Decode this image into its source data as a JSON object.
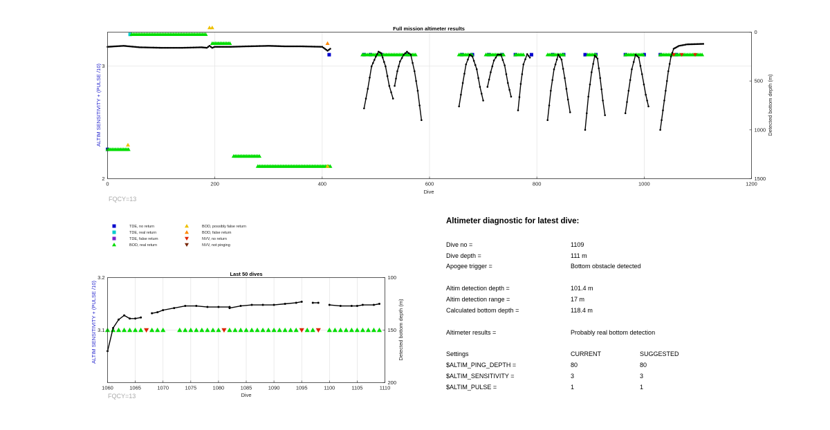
{
  "chart_data": [
    {
      "type": "scatter",
      "title": "Full mission altimeter results",
      "xlabel": "Dive",
      "ylabel": "ALTIM SENSITIVITY + (PULSE /10)",
      "y2label": "Detected bottom depth (m)",
      "xlim": [
        0,
        1200
      ],
      "ylim": [
        2,
        3.3
      ],
      "y2lim": [
        1500,
        0
      ],
      "xticks": [
        0,
        200,
        400,
        600,
        800,
        1000,
        1200
      ],
      "yticks": [
        2,
        3
      ],
      "y2ticks": [
        0,
        500,
        1000,
        1500
      ],
      "grid": true,
      "annotation": "FQCY=13",
      "series": [
        {
          "name": "TDE, no return",
          "color": "#0000cc",
          "marker": "square",
          "points": [
            [
              0,
              2.26
            ],
            [
              413,
              3.1
            ],
            [
              478,
              3.1
            ],
            [
              490,
              3.1
            ],
            [
              510,
              3.1
            ],
            [
              560,
              3.1
            ],
            [
              660,
              3.1
            ],
            [
              680,
              3.1
            ],
            [
              710,
              3.1
            ],
            [
              735,
              3.1
            ],
            [
              760,
              3.1
            ],
            [
              790,
              3.1
            ],
            [
              830,
              3.1
            ],
            [
              850,
              3.1
            ],
            [
              890,
              3.1
            ],
            [
              910,
              3.1
            ],
            [
              965,
              3.1
            ],
            [
              1000,
              3.1
            ],
            [
              1030,
              3.1
            ],
            [
              1060,
              3.1
            ]
          ]
        },
        {
          "name": "TDE, real return",
          "color": "#00cccc",
          "marker": "square",
          "points": [
            [
              42,
              3.28
            ]
          ]
        },
        {
          "name": "BOD, real return",
          "color": "#00dd00",
          "marker": "triangle-up",
          "segments": [
            [
              0,
              40,
              2.26
            ],
            [
              45,
              185,
              3.28
            ],
            [
              195,
              230,
              3.2
            ],
            [
              235,
              285,
              2.2
            ],
            [
              280,
              415,
              2.11
            ],
            [
              475,
              575,
              3.1
            ],
            [
              655,
              680,
              3.1
            ],
            [
              705,
              740,
              3.1
            ],
            [
              760,
              775,
              3.1
            ],
            [
              820,
              850,
              3.1
            ],
            [
              895,
              910,
              3.1
            ],
            [
              965,
              1000,
              3.1
            ],
            [
              1030,
              1110,
              3.1
            ]
          ]
        },
        {
          "name": "BOD, possibly false return",
          "color": "#eec000",
          "marker": "triangle-up",
          "points": [
            [
              38,
              2.3
            ],
            [
              190,
              3.34
            ],
            [
              195,
              3.34
            ],
            [
              410,
              2.11
            ]
          ]
        },
        {
          "name": "BOD, false return",
          "color": "#ff8800",
          "marker": "triangle-up",
          "points": [
            [
              410,
              3.2
            ]
          ]
        },
        {
          "name": "NVV, no return",
          "color": "#dd2200",
          "marker": "triangle-down",
          "points": [
            [
              1055,
              3.1
            ],
            [
              1070,
              3.1
            ],
            [
              1095,
              3.1
            ]
          ]
        }
      ],
      "depth": {
        "segments": [
          [
            [
              0,
              150
            ],
            [
              30,
              140
            ],
            [
              60,
              155
            ],
            [
              100,
              160
            ],
            [
              140,
              160
            ],
            [
              175,
              155
            ],
            [
              185,
              160
            ],
            [
              190,
              140
            ],
            [
              195,
              160
            ],
            [
              200,
              150
            ],
            [
              230,
              150
            ],
            [
              260,
              145
            ],
            [
              300,
              140
            ],
            [
              330,
              145
            ],
            [
              360,
              145
            ],
            [
              400,
              150
            ],
            [
              410,
              190
            ],
            [
              415,
              170
            ]
          ],
          [
            [
              478,
              780
            ],
            [
              485,
              580
            ],
            [
              492,
              350
            ],
            [
              500,
              250
            ],
            [
              505,
              200
            ],
            [
              510,
              215
            ],
            [
              518,
              350
            ],
            [
              525,
              550
            ],
            [
              532,
              680
            ]
          ],
          [
            [
              535,
              550
            ],
            [
              540,
              400
            ],
            [
              545,
              300
            ],
            [
              552,
              230
            ],
            [
              558,
              200
            ],
            [
              565,
              230
            ],
            [
              572,
              400
            ],
            [
              578,
              600
            ],
            [
              585,
              900
            ]
          ],
          [
            [
              655,
              760
            ],
            [
              662,
              520
            ],
            [
              668,
              330
            ],
            [
              675,
              230
            ],
            [
              680,
              250
            ],
            [
              688,
              380
            ],
            [
              694,
              560
            ],
            [
              700,
              700
            ]
          ],
          [
            [
              708,
              560
            ],
            [
              714,
              410
            ],
            [
              720,
              290
            ],
            [
              727,
              230
            ],
            [
              733,
              230
            ],
            [
              740,
              340
            ],
            [
              746,
              520
            ],
            [
              752,
              660
            ]
          ],
          [
            [
              765,
              800
            ],
            [
              770,
              530
            ],
            [
              775,
              330
            ],
            [
              782,
              225
            ],
            [
              787,
              260
            ]
          ],
          [
            [
              820,
              900
            ],
            [
              826,
              600
            ],
            [
              832,
              380
            ],
            [
              840,
              230
            ],
            [
              846,
              280
            ],
            [
              852,
              470
            ],
            [
              858,
              690
            ],
            [
              862,
              820
            ]
          ],
          [
            [
              890,
              1000
            ],
            [
              896,
              660
            ],
            [
              902,
              410
            ],
            [
              908,
              240
            ],
            [
              913,
              270
            ],
            [
              918,
              470
            ],
            [
              923,
              700
            ],
            [
              927,
              850
            ]
          ],
          [
            [
              965,
              830
            ],
            [
              971,
              600
            ],
            [
              977,
              380
            ],
            [
              984,
              230
            ],
            [
              990,
              260
            ],
            [
              996,
              430
            ],
            [
              1003,
              640
            ],
            [
              1008,
              760
            ]
          ],
          [
            [
              1030,
              1000
            ],
            [
              1035,
              800
            ],
            [
              1040,
              600
            ],
            [
              1045,
              400
            ],
            [
              1050,
              250
            ],
            [
              1055,
              170
            ],
            [
              1065,
              140
            ],
            [
              1080,
              125
            ],
            [
              1110,
              120
            ]
          ]
        ]
      },
      "legend": "below"
    },
    {
      "type": "scatter",
      "title": "Last 50 dives",
      "xlabel": "Dive",
      "ylabel": "ALTIM SENSITIVITY + (PULSE /10)",
      "y2label": "Detected bottom depth (m)",
      "xlim": [
        1060,
        1110
      ],
      "ylim": [
        3.0,
        3.2
      ],
      "y2lim": [
        200,
        100
      ],
      "xticks": [
        1060,
        1065,
        1070,
        1075,
        1080,
        1085,
        1090,
        1095,
        1100,
        1105,
        1110
      ],
      "yticks": [
        3.1,
        3.2
      ],
      "y2ticks": [
        100,
        150,
        200
      ],
      "grid": true,
      "annotation": "FQCY=13",
      "bod_real_dives": [
        1060,
        1061,
        1062,
        1063,
        1064,
        1065,
        1066,
        1068,
        1069,
        1070,
        1073,
        1074,
        1075,
        1076,
        1077,
        1078,
        1079,
        1080,
        1082,
        1083,
        1084,
        1085,
        1086,
        1087,
        1088,
        1089,
        1090,
        1091,
        1092,
        1093,
        1094,
        1096,
        1097,
        1100,
        1101,
        1102,
        1103,
        1104,
        1105,
        1106,
        1107,
        1108,
        1109
      ],
      "nvv_no_return_dives": [
        1067,
        1081,
        1095,
        1098
      ],
      "depth": {
        "segments": [
          [
            [
              1060,
              170
            ],
            [
              1061,
              148
            ],
            [
              1062,
              140
            ],
            [
              1063,
              136
            ],
            [
              1064,
              139
            ],
            [
              1065,
              139
            ],
            [
              1066,
              138
            ]
          ],
          [
            [
              1068,
              134
            ],
            [
              1069,
              133
            ],
            [
              1070,
              131
            ],
            [
              1072,
              129
            ],
            [
              1074,
              127
            ],
            [
              1076,
              127
            ],
            [
              1078,
              128
            ],
            [
              1080,
              128
            ],
            [
              1082,
              128
            ]
          ],
          [
            [
              1082,
              129
            ],
            [
              1084,
              127
            ],
            [
              1086,
              126
            ],
            [
              1088,
              126
            ],
            [
              1090,
              126
            ],
            [
              1092,
              125
            ],
            [
              1094,
              124
            ],
            [
              1095,
              123
            ]
          ],
          [
            [
              1097,
              124
            ],
            [
              1098,
              124
            ]
          ],
          [
            [
              1100,
              126
            ],
            [
              1102,
              127
            ],
            [
              1104,
              127
            ],
            [
              1105,
              127
            ],
            [
              1106,
              126
            ],
            [
              1108,
              126
            ],
            [
              1109,
              125
            ]
          ]
        ]
      }
    }
  ],
  "legend": {
    "items": [
      {
        "label": "TDE, no return",
        "color": "#0000cc",
        "marker": "square"
      },
      {
        "label": "TDE, real return",
        "color": "#00cccc",
        "marker": "square"
      },
      {
        "label": "TDE, false return",
        "color": "#7722cc",
        "marker": "square"
      },
      {
        "label": "BOD, real return",
        "color": "#00dd00",
        "marker": "triangle-up"
      },
      {
        "label": "BOD, possibly false return",
        "color": "#eec000",
        "marker": "triangle-up"
      },
      {
        "label": "BOD, false return",
        "color": "#ff8800",
        "marker": "triangle-up"
      },
      {
        "label": "NVV, no return",
        "color": "#dd2200",
        "marker": "triangle-down"
      },
      {
        "label": "NVV, not pinging",
        "color": "#772200",
        "marker": "triangle-down"
      }
    ]
  },
  "diagnostic": {
    "title": "Altimeter diagnostic for latest dive:",
    "dive_no_label": "Dive no =",
    "dive_no": "1109",
    "dive_depth_label": "Dive depth =",
    "dive_depth": "111 m",
    "apogee_label": "Apogee trigger =",
    "apogee": "Bottom obstacle detected",
    "detect_depth_label": "Altim detection depth =",
    "detect_depth": "101.4 m",
    "detect_range_label": "Altim detection range =",
    "detect_range": "17 m",
    "calc_depth_label": "Calculated bottom depth =",
    "calc_depth": "118.4 m",
    "results_label": "Altimeter results =",
    "results": "Probably real bottom detection",
    "settings_label": "Settings",
    "current_label": "CURRENT",
    "suggested_label": "SUGGESTED",
    "settings": [
      {
        "name": "$ALTIM_PING_DEPTH =",
        "current": "80",
        "suggested": "80"
      },
      {
        "name": "$ALTIM_SENSITIVITY =",
        "current": "3",
        "suggested": "3"
      },
      {
        "name": "$ALTIM_PULSE =",
        "current": "1",
        "suggested": "1"
      }
    ]
  }
}
